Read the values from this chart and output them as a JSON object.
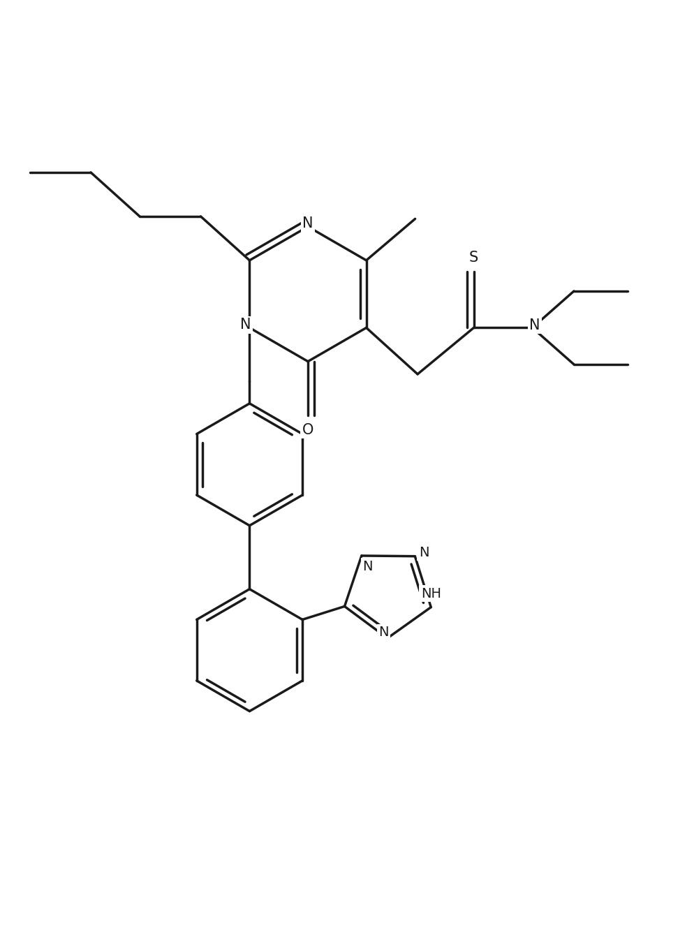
{
  "background_color": "#ffffff",
  "line_color": "#1a1a1a",
  "line_width": 2.5,
  "font_size": 15,
  "figsize": [
    9.94,
    13.32
  ],
  "dpi": 100,
  "xlim": [
    -1,
    13
  ],
  "ylim": [
    0,
    19
  ]
}
